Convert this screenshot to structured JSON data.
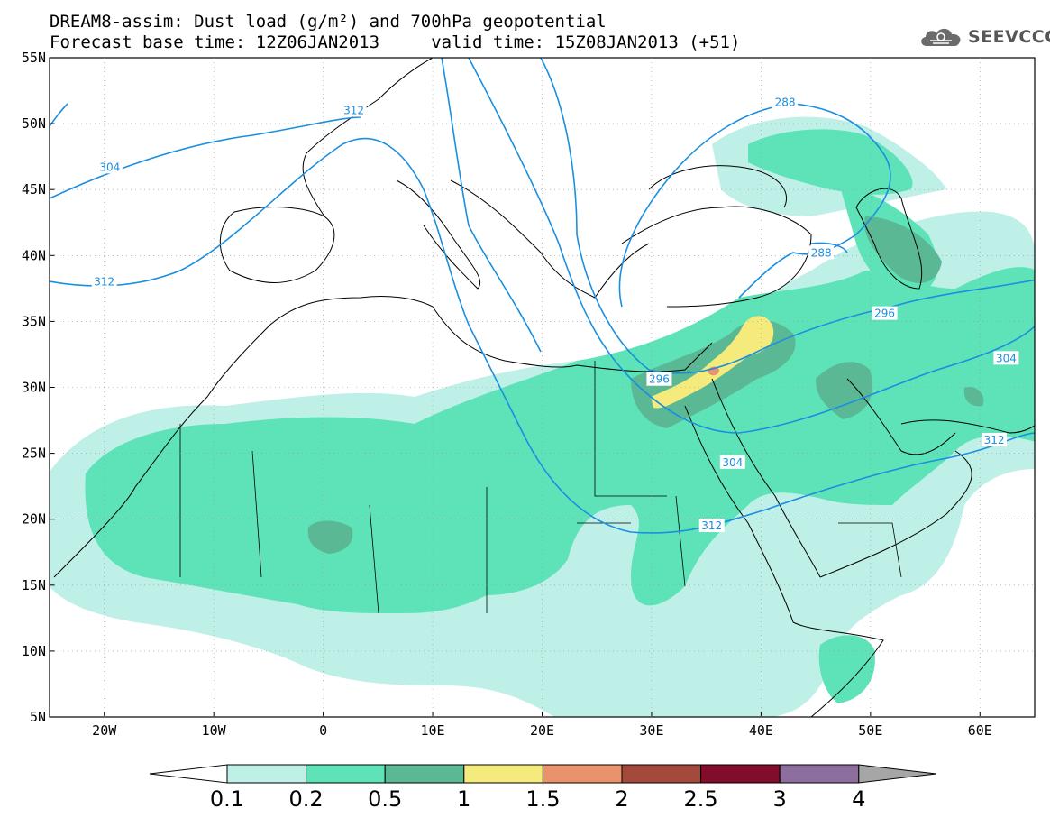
{
  "title": {
    "line1": "DREAM8-assim: Dust load (g/m²) and 700hPa geopotential",
    "line2": "Forecast base time: 12Z06JAN2013     valid time: 15Z08JAN2013 (+51)"
  },
  "logo": {
    "text": "SEEVCCC",
    "icon": "cloud-icon"
  },
  "map": {
    "lon_range": [
      -25,
      65
    ],
    "lat_range": [
      5,
      55
    ],
    "lat_ticks": [
      {
        "value": 55,
        "label": "55N"
      },
      {
        "value": 50,
        "label": "50N"
      },
      {
        "value": 45,
        "label": "45N"
      },
      {
        "value": 40,
        "label": "40N"
      },
      {
        "value": 35,
        "label": "35N"
      },
      {
        "value": 30,
        "label": "30N"
      },
      {
        "value": 25,
        "label": "25N"
      },
      {
        "value": 20,
        "label": "20N"
      },
      {
        "value": 15,
        "label": "15N"
      },
      {
        "value": 10,
        "label": "10N"
      },
      {
        "value": 5,
        "label": "5N"
      }
    ],
    "lon_ticks": [
      {
        "value": -20,
        "label": "20W"
      },
      {
        "value": -10,
        "label": "10W"
      },
      {
        "value": 0,
        "label": "0"
      },
      {
        "value": 10,
        "label": "10E"
      },
      {
        "value": 20,
        "label": "20E"
      },
      {
        "value": 30,
        "label": "30E"
      },
      {
        "value": 40,
        "label": "40E"
      },
      {
        "value": 50,
        "label": "50E"
      },
      {
        "value": 60,
        "label": "60E"
      }
    ],
    "contour_labels": [
      {
        "text": "312",
        "lon": 2.8,
        "lat": 51.0
      },
      {
        "text": "304",
        "lon": -19.5,
        "lat": 46.7
      },
      {
        "text": "312",
        "lon": -20.0,
        "lat": 38.0
      },
      {
        "text": "288",
        "lon": 42.2,
        "lat": 51.6
      },
      {
        "text": "288",
        "lon": 45.5,
        "lat": 40.2
      },
      {
        "text": "296",
        "lon": 51.3,
        "lat": 35.6
      },
      {
        "text": "296",
        "lon": 30.7,
        "lat": 30.6
      },
      {
        "text": "304",
        "lon": 62.4,
        "lat": 32.2
      },
      {
        "text": "304",
        "lon": 37.4,
        "lat": 24.3
      },
      {
        "text": "312",
        "lon": 61.3,
        "lat": 26.0
      },
      {
        "text": "312",
        "lon": 35.5,
        "lat": 19.5
      }
    ]
  },
  "colorbar": {
    "labels": [
      "0.1",
      "0.2",
      "0.5",
      "1",
      "1.5",
      "2",
      "2.5",
      "3",
      "4"
    ],
    "colors": [
      "#bff0e8",
      "#5ee3b8",
      "#5bb895",
      "#f4eb7c",
      "#e9926c",
      "#a34a3c",
      "#820d2a",
      "#8e6e9e",
      "#a6a6a6"
    ],
    "under_color": "#ffffff",
    "over_color": "#a6a6a6"
  },
  "colors": {
    "contour": "#1a8fe0",
    "coast": "#000000"
  }
}
